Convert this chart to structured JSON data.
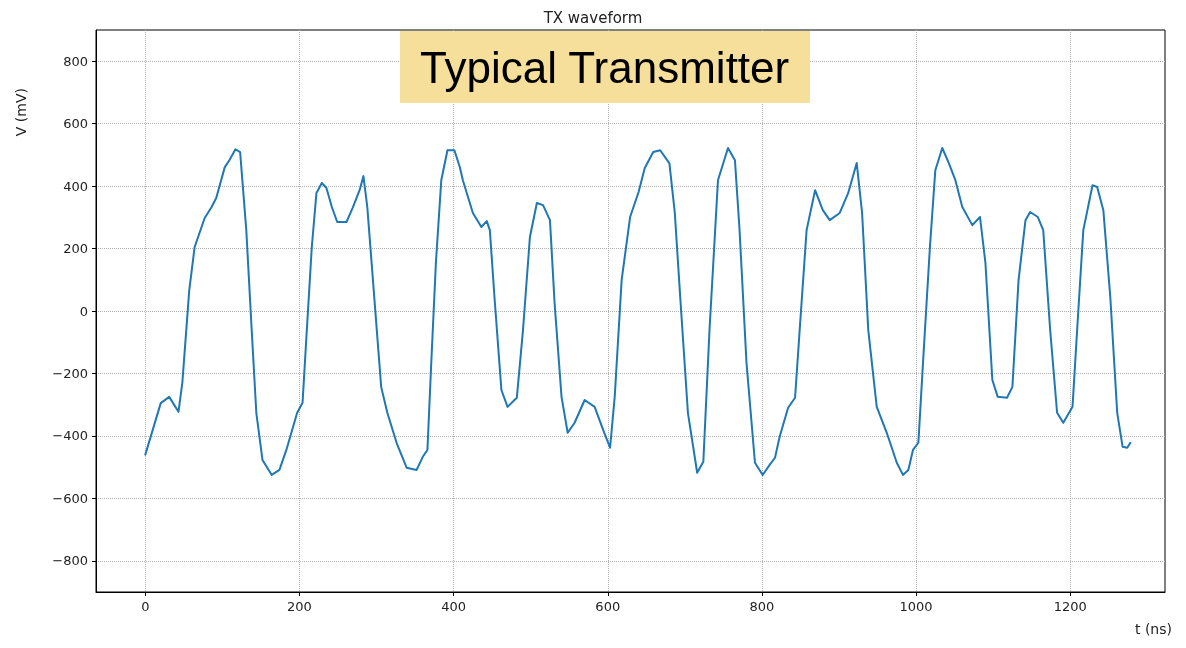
{
  "chart_data": {
    "type": "line",
    "title": "TX waveform",
    "xlabel": "t (ns)",
    "ylabel": "V (mV)",
    "annotations": [
      "Typical Transmitter"
    ],
    "series": [
      {
        "color": "#1f77b4",
        "x": [
          0,
          20,
          31,
          43,
          48,
          57,
          64,
          77,
          86,
          92,
          103,
          109,
          117,
          123,
          131,
          138,
          144,
          152,
          164,
          174,
          183,
          197,
          204,
          209,
          216,
          222,
          229,
          235,
          242,
          249,
          261,
          269,
          278,
          283,
          288,
          297,
          306,
          314,
          326,
          339,
          352,
          360,
          366,
          371,
          377,
          384,
          392,
          401,
          408,
          412,
          425,
          436,
          443,
          447,
          453,
          462,
          470,
          482,
          490,
          499,
          508,
          516,
          525,
          531,
          540,
          548,
          557,
          570,
          583,
          594,
          603,
          609,
          618,
          629,
          640,
          648,
          659,
          668,
          680,
          687,
          694,
          704,
          716,
          724,
          732,
          743,
          756,
          765,
          771,
          780,
          791,
          801,
          810,
          817,
          823,
          834,
          843,
          849,
          858,
          869,
          879,
          888,
          901,
          912,
          923,
          930,
          938,
          949,
          962,
          975,
          983,
          990,
          996,
          1003,
          1009,
          1018,
          1025,
          1034,
          1042,
          1051,
          1060,
          1073,
          1083,
          1090,
          1099,
          1106,
          1118,
          1125,
          1133,
          1142,
          1148,
          1158,
          1165,
          1174,
          1183,
          1191,
          1203,
          1209,
          1217,
          1229,
          1235,
          1243,
          1252,
          1261,
          1268,
          1274,
          1278
        ],
        "values": [
          -460,
          -295,
          -275,
          -323,
          -230,
          67,
          205,
          298,
          333,
          362,
          460,
          483,
          518,
          509,
          259,
          -61,
          -326,
          -477,
          -525,
          -509,
          -445,
          -326,
          -294,
          -83,
          205,
          378,
          410,
          394,
          333,
          285,
          285,
          330,
          387,
          432,
          333,
          45,
          -243,
          -326,
          -422,
          -502,
          -509,
          -467,
          -445,
          -166,
          154,
          419,
          515,
          515,
          461,
          419,
          314,
          269,
          288,
          259,
          45,
          -253,
          -307,
          -278,
          -61,
          237,
          346,
          339,
          291,
          26,
          -275,
          -390,
          -358,
          -285,
          -307,
          -381,
          -438,
          -275,
          99,
          301,
          381,
          458,
          509,
          515,
          473,
          314,
          45,
          -326,
          -518,
          -483,
          -61,
          419,
          522,
          483,
          259,
          -166,
          -486,
          -525,
          -493,
          -470,
          -403,
          -310,
          -278,
          -61,
          259,
          387,
          323,
          291,
          314,
          378,
          474,
          314,
          -61,
          -307,
          -390,
          -486,
          -525,
          -509,
          -445,
          -422,
          -166,
          205,
          451,
          522,
          477,
          419,
          333,
          275,
          301,
          154,
          -221,
          -275,
          -278,
          -243,
          99,
          291,
          317,
          301,
          259,
          -61,
          -326,
          -358,
          -307,
          -61,
          259,
          403,
          397,
          323,
          45,
          -326,
          -435,
          -438,
          -422
        ]
      }
    ],
    "xlim": [
      -64,
      1323
    ],
    "xticks": [
      0,
      200,
      400,
      600,
      800,
      1000,
      1200
    ],
    "ylim": [
      -900,
      900
    ],
    "yticks": [
      {
        "value": -800,
        "label": "−800"
      },
      {
        "value": -600,
        "label": "−600"
      },
      {
        "value": -400,
        "label": "−400"
      },
      {
        "value": -200,
        "label": "−200"
      },
      0,
      200,
      400,
      600,
      800
    ],
    "grid": true,
    "marker": "none",
    "line_style": "solid"
  }
}
